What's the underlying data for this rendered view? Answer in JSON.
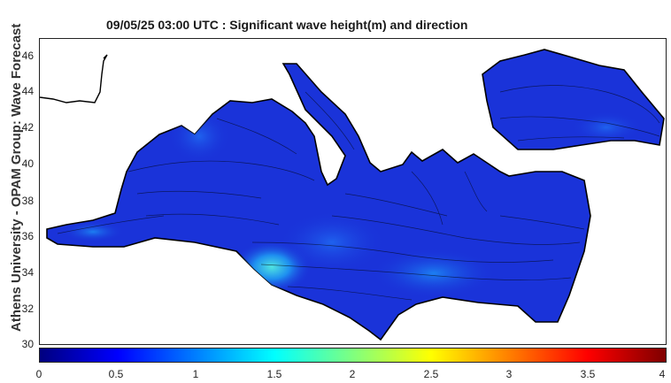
{
  "title": "09/05/25 03:00 UTC : Significant wave height(m) and direction",
  "side_label": "Athens University - OPAM Group: Wave Forecast",
  "y_axis": {
    "ticks": [
      "46",
      "44",
      "42",
      "40",
      "38",
      "36",
      "34",
      "32",
      "30"
    ]
  },
  "colorbar": {
    "ticks": [
      "0",
      "0.5",
      "1",
      "1.5",
      "2",
      "2.5",
      "3",
      "3.5",
      "4"
    ],
    "colors": [
      "#00007f",
      "#0000ff",
      "#007fff",
      "#00ffff",
      "#7fff7f",
      "#ffff00",
      "#ff7f00",
      "#ff0000",
      "#7f0000"
    ]
  },
  "map": {
    "sea_color": "#1a33d9",
    "coastline_color": "#000000"
  }
}
